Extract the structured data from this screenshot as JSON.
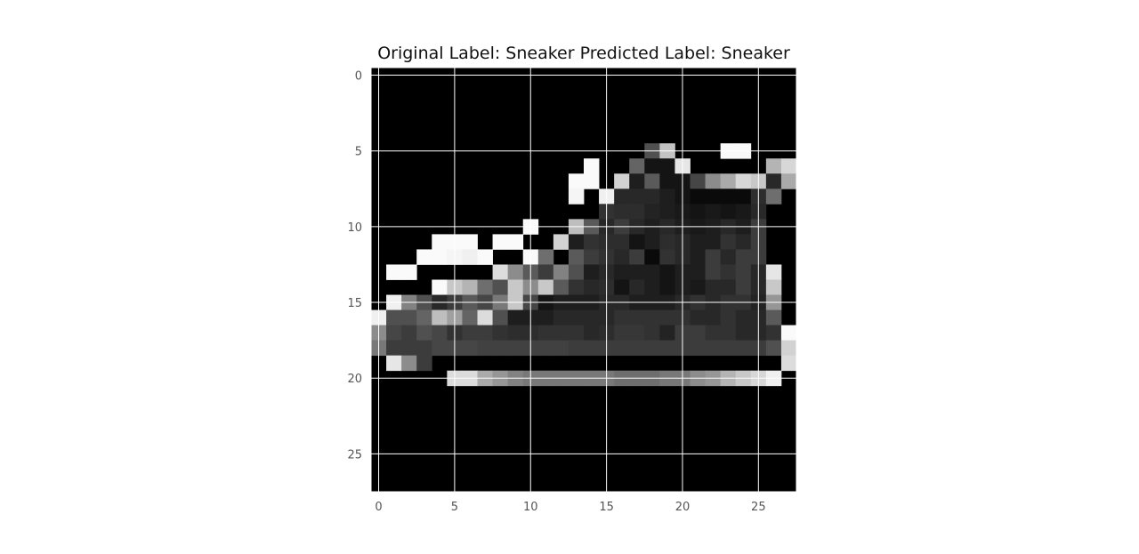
{
  "figure": {
    "title": "Original Label: Sneaker  Predicted Label: Sneaker"
  },
  "chart_data": {
    "type": "heatmap",
    "title": "Original Label: Sneaker  Predicted Label: Sneaker",
    "colormap": "gray",
    "grid": true,
    "grid_color": "#ffffff",
    "xlim": [
      -0.5,
      27.5
    ],
    "ylim": [
      27.5,
      -0.5
    ],
    "x_ticks": [
      0,
      5,
      10,
      15,
      20,
      25
    ],
    "y_ticks": [
      0,
      5,
      10,
      15,
      20,
      25
    ],
    "x_tick_labels": [
      "0",
      "5",
      "10",
      "15",
      "20",
      "25"
    ],
    "y_tick_labels": [
      "0",
      "5",
      "10",
      "15",
      "20",
      "25"
    ],
    "image_size": [
      28,
      28
    ],
    "pixels": [
      [
        0,
        0,
        0,
        0,
        0,
        0,
        0,
        0,
        0,
        0,
        0,
        0,
        0,
        0,
        0,
        0,
        0,
        0,
        0,
        0,
        0,
        0,
        0,
        0,
        0,
        0,
        0,
        0
      ],
      [
        0,
        0,
        0,
        0,
        0,
        0,
        0,
        0,
        0,
        0,
        0,
        0,
        0,
        0,
        0,
        0,
        0,
        0,
        0,
        0,
        0,
        0,
        0,
        0,
        0,
        0,
        0,
        0
      ],
      [
        0,
        0,
        0,
        0,
        0,
        0,
        0,
        0,
        0,
        0,
        0,
        0,
        0,
        0,
        0,
        0,
        0,
        0,
        0,
        0,
        0,
        0,
        0,
        0,
        0,
        0,
        0,
        0
      ],
      [
        0,
        0,
        0,
        0,
        0,
        0,
        0,
        0,
        0,
        0,
        0,
        0,
        0,
        0,
        0,
        0,
        0,
        0,
        0,
        0,
        0,
        0,
        0,
        0,
        0,
        0,
        0,
        0
      ],
      [
        0,
        0,
        0,
        0,
        0,
        0,
        0,
        0,
        0,
        0,
        0,
        0,
        0,
        0,
        0,
        0,
        0,
        0,
        0,
        0,
        0,
        0,
        0,
        0,
        0,
        0,
        0,
        0
      ],
      [
        0,
        0,
        0,
        0,
        0,
        0,
        0,
        0,
        0,
        0,
        0,
        0,
        0,
        0,
        0,
        0,
        0,
        0,
        80,
        195,
        0,
        0,
        0,
        250,
        250,
        0,
        0,
        0
      ],
      [
        0,
        0,
        0,
        0,
        0,
        0,
        0,
        0,
        0,
        0,
        0,
        0,
        0,
        0,
        250,
        0,
        0,
        100,
        20,
        20,
        230,
        0,
        0,
        0,
        0,
        0,
        180,
        215
      ],
      [
        0,
        0,
        0,
        0,
        0,
        0,
        0,
        0,
        0,
        0,
        0,
        0,
        0,
        250,
        250,
        0,
        210,
        30,
        90,
        20,
        20,
        70,
        140,
        170,
        215,
        200,
        40,
        170
      ],
      [
        0,
        0,
        0,
        0,
        0,
        0,
        0,
        0,
        0,
        0,
        0,
        0,
        0,
        245,
        0,
        240,
        40,
        40,
        40,
        30,
        20,
        10,
        10,
        10,
        10,
        45,
        110,
        0
      ],
      [
        0,
        0,
        0,
        0,
        0,
        0,
        0,
        0,
        0,
        0,
        0,
        0,
        0,
        0,
        0,
        50,
        45,
        45,
        35,
        30,
        25,
        20,
        25,
        20,
        25,
        40,
        0,
        0
      ],
      [
        0,
        0,
        0,
        0,
        0,
        0,
        0,
        0,
        0,
        0,
        250,
        0,
        0,
        190,
        90,
        40,
        60,
        40,
        30,
        40,
        30,
        25,
        30,
        40,
        30,
        60,
        0,
        0
      ],
      [
        0,
        0,
        0,
        0,
        250,
        250,
        250,
        0,
        250,
        250,
        0,
        0,
        210,
        30,
        50,
        45,
        45,
        20,
        30,
        45,
        40,
        30,
        30,
        50,
        40,
        60,
        0,
        0
      ],
      [
        0,
        0,
        0,
        250,
        250,
        245,
        240,
        250,
        0,
        0,
        250,
        110,
        0,
        90,
        60,
        50,
        40,
        60,
        10,
        50,
        40,
        30,
        60,
        40,
        60,
        60,
        0,
        0
      ],
      [
        0,
        250,
        250,
        0,
        0,
        0,
        0,
        0,
        220,
        140,
        90,
        60,
        130,
        80,
        30,
        40,
        30,
        30,
        30,
        20,
        30,
        30,
        60,
        50,
        60,
        40,
        230,
        0
      ],
      [
        0,
        0,
        0,
        0,
        250,
        200,
        180,
        110,
        80,
        200,
        140,
        200,
        90,
        50,
        40,
        45,
        20,
        40,
        30,
        20,
        30,
        25,
        40,
        40,
        60,
        40,
        200,
        0
      ],
      [
        0,
        240,
        130,
        80,
        40,
        60,
        90,
        70,
        120,
        200,
        70,
        20,
        30,
        30,
        30,
        40,
        40,
        30,
        30,
        30,
        40,
        50,
        40,
        50,
        50,
        35,
        150,
        0
      ],
      [
        240,
        80,
        80,
        100,
        190,
        160,
        100,
        220,
        80,
        30,
        30,
        30,
        40,
        40,
        40,
        40,
        50,
        50,
        50,
        50,
        50,
        40,
        40,
        50,
        40,
        40,
        90,
        0
      ],
      [
        140,
        70,
        60,
        80,
        70,
        50,
        60,
        60,
        50,
        45,
        45,
        50,
        50,
        50,
        40,
        45,
        55,
        55,
        50,
        35,
        60,
        60,
        50,
        50,
        40,
        40,
        50,
        250
      ],
      [
        120,
        60,
        60,
        60,
        70,
        70,
        70,
        65,
        65,
        65,
        65,
        65,
        65,
        60,
        60,
        60,
        60,
        60,
        60,
        60,
        60,
        60,
        60,
        60,
        60,
        60,
        80,
        210
      ],
      [
        0,
        230,
        140,
        60,
        0,
        0,
        0,
        0,
        0,
        0,
        0,
        0,
        0,
        0,
        0,
        0,
        0,
        0,
        0,
        0,
        0,
        0,
        0,
        0,
        0,
        0,
        0,
        220
      ],
      [
        0,
        0,
        0,
        0,
        0,
        220,
        220,
        170,
        150,
        130,
        120,
        120,
        120,
        120,
        120,
        120,
        110,
        110,
        110,
        120,
        120,
        140,
        150,
        180,
        200,
        215,
        240,
        0
      ],
      [
        0,
        0,
        0,
        0,
        0,
        0,
        0,
        0,
        0,
        0,
        0,
        0,
        0,
        0,
        0,
        0,
        0,
        0,
        0,
        0,
        0,
        0,
        0,
        0,
        0,
        0,
        0,
        0
      ],
      [
        0,
        0,
        0,
        0,
        0,
        0,
        0,
        0,
        0,
        0,
        0,
        0,
        0,
        0,
        0,
        0,
        0,
        0,
        0,
        0,
        0,
        0,
        0,
        0,
        0,
        0,
        0,
        0
      ],
      [
        0,
        0,
        0,
        0,
        0,
        0,
        0,
        0,
        0,
        0,
        0,
        0,
        0,
        0,
        0,
        0,
        0,
        0,
        0,
        0,
        0,
        0,
        0,
        0,
        0,
        0,
        0,
        0
      ],
      [
        0,
        0,
        0,
        0,
        0,
        0,
        0,
        0,
        0,
        0,
        0,
        0,
        0,
        0,
        0,
        0,
        0,
        0,
        0,
        0,
        0,
        0,
        0,
        0,
        0,
        0,
        0,
        0
      ],
      [
        0,
        0,
        0,
        0,
        0,
        0,
        0,
        0,
        0,
        0,
        0,
        0,
        0,
        0,
        0,
        0,
        0,
        0,
        0,
        0,
        0,
        0,
        0,
        0,
        0,
        0,
        0,
        0
      ],
      [
        0,
        0,
        0,
        0,
        0,
        0,
        0,
        0,
        0,
        0,
        0,
        0,
        0,
        0,
        0,
        0,
        0,
        0,
        0,
        0,
        0,
        0,
        0,
        0,
        0,
        0,
        0,
        0
      ],
      [
        0,
        0,
        0,
        0,
        0,
        0,
        0,
        0,
        0,
        0,
        0,
        0,
        0,
        0,
        0,
        0,
        0,
        0,
        0,
        0,
        0,
        0,
        0,
        0,
        0,
        0,
        0,
        0
      ]
    ]
  }
}
